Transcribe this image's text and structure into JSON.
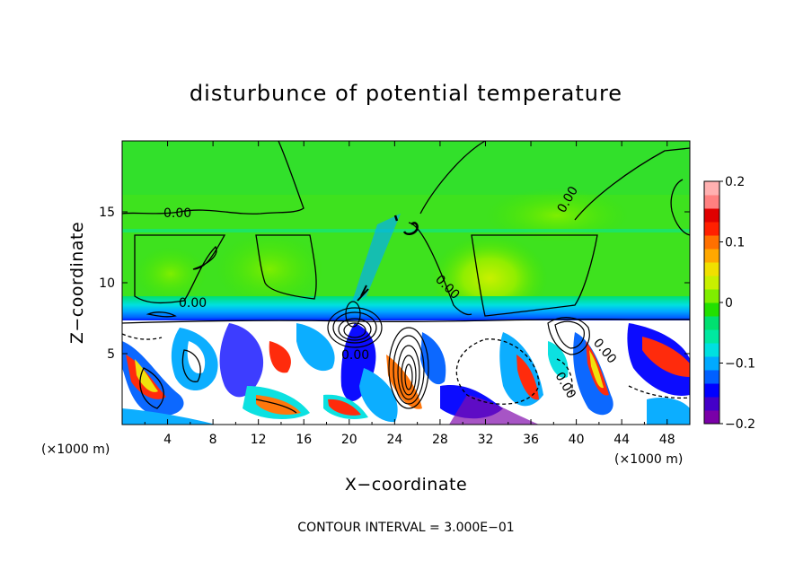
{
  "chart_data": {
    "type": "heatmap",
    "title": "disturbunce of potential temperature",
    "xlabel": "X−coordinate",
    "ylabel": "Z−coordinate",
    "x_unit": "(×1000 m)",
    "y_unit": "(×1000 m)",
    "xlim": [
      0,
      50
    ],
    "ylim": [
      0,
      20
    ],
    "x_ticks": [
      4,
      8,
      12,
      16,
      20,
      24,
      28,
      32,
      36,
      40,
      44,
      48
    ],
    "x_tick_labels": [
      "4",
      "8",
      "12",
      "16",
      "20",
      "24",
      "28",
      "32",
      "36",
      "40",
      "44",
      "48"
    ],
    "y_ticks": [
      5,
      10,
      15
    ],
    "y_tick_labels": [
      "5",
      "10",
      "15"
    ],
    "contour_interval_text": "CONTOUR INTERVAL = 3.000E−01",
    "contour_labels": [
      "0.00",
      "0.00",
      "0.00",
      "0.00",
      "0.00",
      "0.00",
      "0.00"
    ],
    "colorbar": {
      "range": [
        -0.2,
        0.2
      ],
      "tick_values": [
        0.2,
        0.1,
        0,
        -0.1,
        -0.2
      ],
      "tick_labels": [
        "0.2",
        "0.1",
        "0",
        "−0.1",
        "−0.2"
      ],
      "colors": [
        "#7a00a8",
        "#4400c8",
        "#0000ff",
        "#0060ff",
        "#00aaff",
        "#00e0e0",
        "#00e8a0",
        "#00e070",
        "#22e000",
        "#7fee00",
        "#c8f000",
        "#f0e000",
        "#ffa800",
        "#ff7000",
        "#ff2000",
        "#e00000",
        "#ff8080",
        "#ffb0b0"
      ]
    },
    "regions_note_field_above_z7_near_zero_green": true
  }
}
